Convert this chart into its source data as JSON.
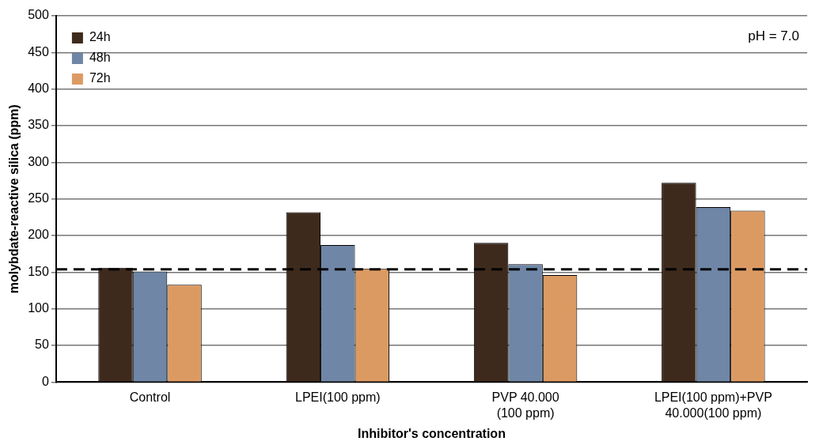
{
  "chart_data": {
    "type": "bar",
    "xlabel": "Inhibitor's concentration",
    "ylabel": "molybdate-reactive silica (ppm)",
    "categories": [
      "Control",
      "LPEI(100 ppm)",
      "PVP 40.000\n(100 ppm)",
      "LPEI(100 ppm)+PVP\n40.000(100 ppm)"
    ],
    "series": [
      {
        "name": "24h",
        "color": "#3e2a1c",
        "values": [
          156,
          232,
          190,
          272
        ]
      },
      {
        "name": "48h",
        "color": "#6f86a6",
        "values": [
          151,
          187,
          161,
          239
        ]
      },
      {
        "name": "72h",
        "color": "#dc9a63",
        "values": [
          133,
          155,
          146,
          234
        ]
      }
    ],
    "ylim": [
      0,
      500
    ],
    "yticks": [
      0,
      50,
      100,
      150,
      200,
      250,
      300,
      350,
      400,
      450,
      500
    ],
    "grid": "y",
    "legend": "top left",
    "ref_lines": [
      {
        "axis": "y",
        "value": 154,
        "line_style": "dashed",
        "color": "#000000"
      }
    ],
    "annotations": [
      "pH = 7.0"
    ]
  }
}
